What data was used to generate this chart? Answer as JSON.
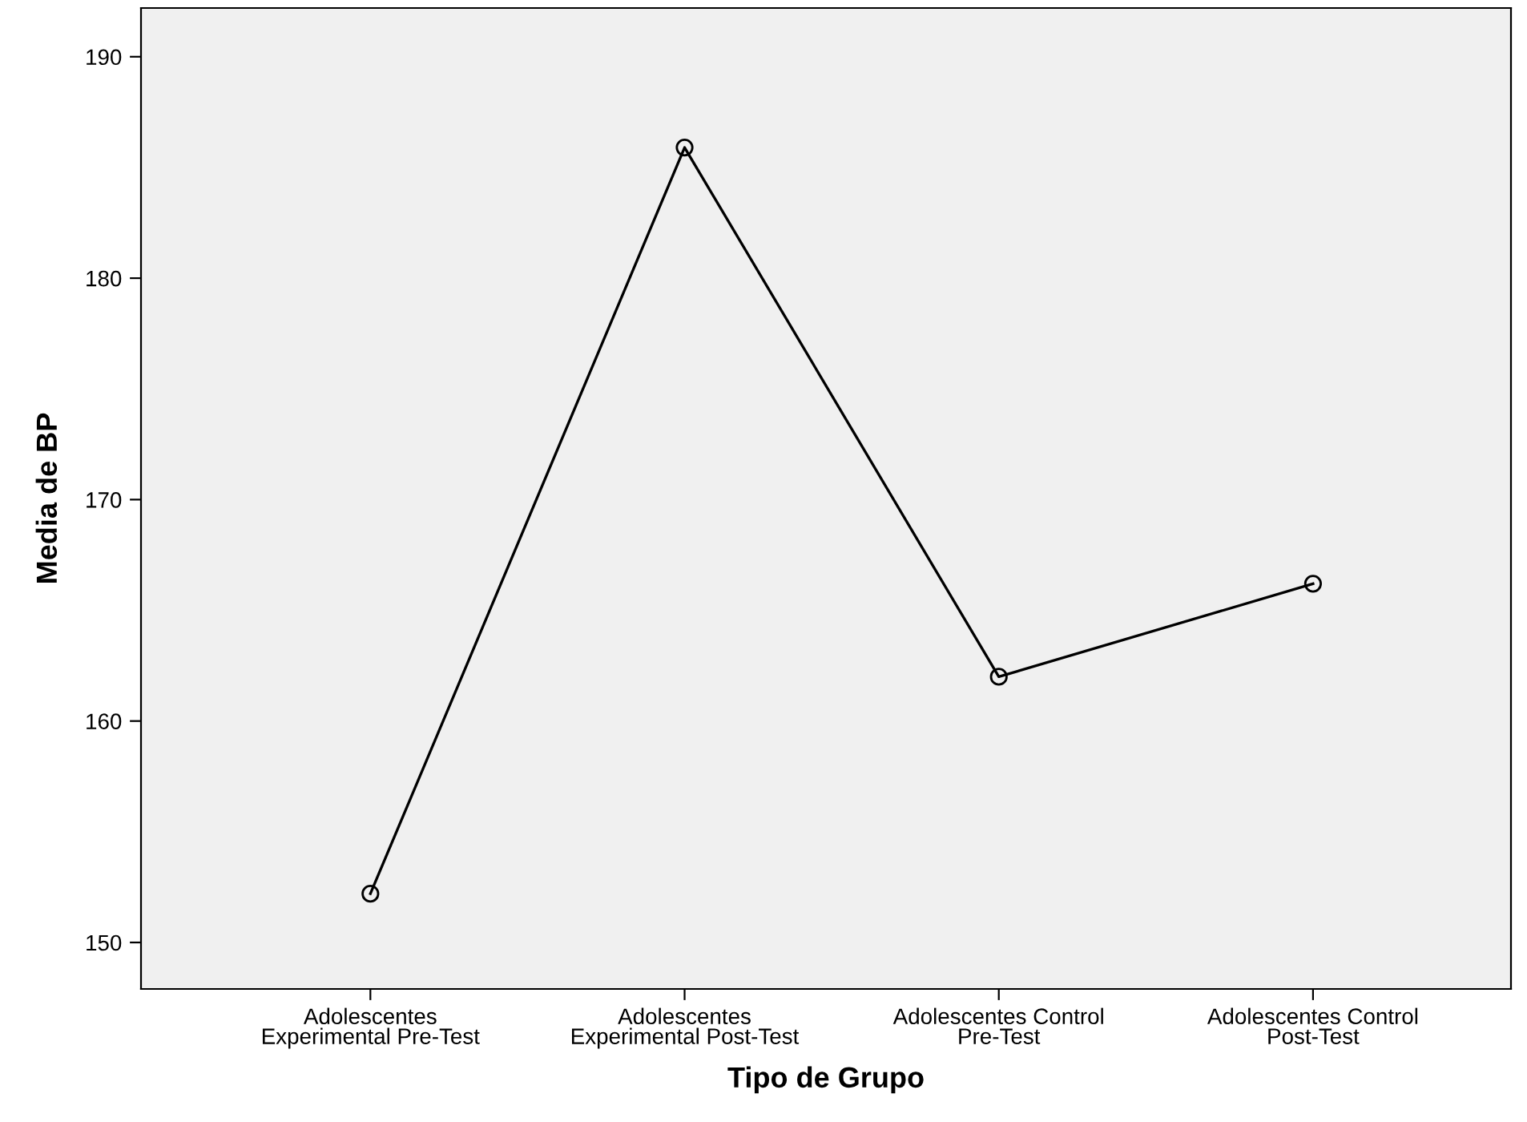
{
  "chart_data": {
    "type": "line",
    "xlabel": "Tipo de Grupo",
    "ylabel": "Media de BP",
    "categories": [
      "Adolescentes\nExperimental Pre-Test",
      "Adolescentes\nExperimental Post-Test",
      "Adolescentes Control\nPre-Test",
      "Adolescentes Control\nPost-Test"
    ],
    "series": [
      {
        "color": "#000000",
        "values": [
          152.2,
          185.9,
          162.0,
          166.2
        ]
      }
    ],
    "ylim": [
      147.9,
      192.2
    ],
    "yticks": [
      150,
      160,
      170,
      180,
      190
    ],
    "marker": "circle",
    "line_style": "solid",
    "grid": false,
    "legend": false
  }
}
